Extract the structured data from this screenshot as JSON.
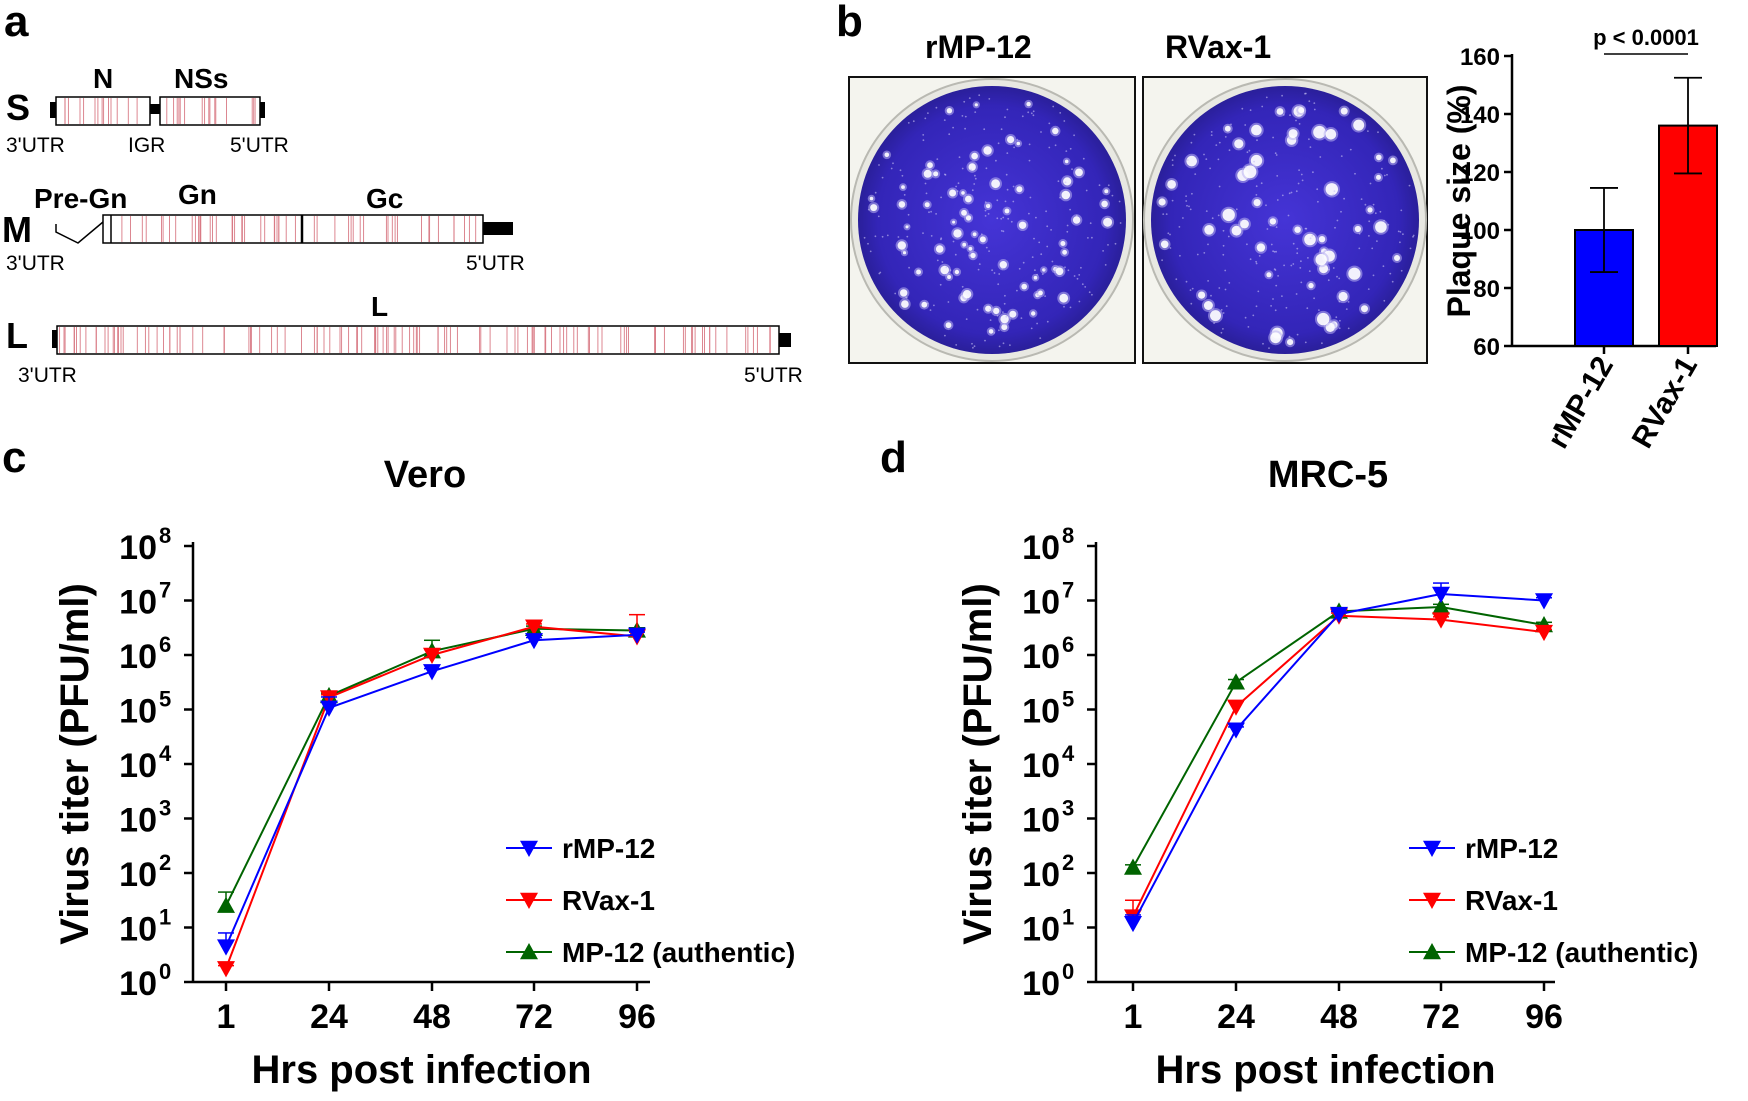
{
  "panel_labels": {
    "a": "a",
    "b": "b",
    "c": "c",
    "d": "d"
  },
  "genome": {
    "segments": [
      {
        "name": "S",
        "genes": [
          "N",
          "NSs"
        ],
        "utr_left": "3'UTR",
        "utr_right": "5'UTR",
        "middle_label": "IGR"
      },
      {
        "name": "M",
        "genes": [
          "Pre-Gn",
          "Gn",
          "Gc"
        ],
        "utr_left": "3'UTR",
        "utr_right": "5'UTR"
      },
      {
        "name": "L",
        "genes": [
          "L"
        ],
        "utr_left": "3'UTR",
        "utr_right": "5'UTR"
      }
    ]
  },
  "plaques": {
    "labels": [
      "rMP-12",
      "RVax-1"
    ]
  },
  "colors": {
    "rMP-12": "#0000ff",
    "RVax-1": "#ff0000",
    "MP-12": "#006400",
    "dish": "#3a2bc4",
    "mutation": "#d97a85"
  },
  "chart_data": [
    {
      "type": "bar",
      "categories": [
        "rMP-12",
        "RVax-1"
      ],
      "values": [
        100,
        136
      ],
      "errors": [
        14.5,
        16.5
      ],
      "ylabel": "Plaque size (%)",
      "ylim": [
        60,
        160
      ],
      "yticks": [
        60,
        80,
        100,
        120,
        140,
        160
      ],
      "annotation": "p < 0.0001"
    },
    {
      "type": "line",
      "title": "Vero",
      "xlabel": "Hrs post infection",
      "ylabel": "Virus titer (PFU/ml)",
      "x": [
        1,
        24,
        48,
        72,
        96
      ],
      "ylim_log10": [
        0,
        8
      ],
      "yticks_exp": [
        0,
        1,
        2,
        3,
        4,
        5,
        6,
        7,
        8
      ],
      "series": [
        {
          "name": "rMP-12",
          "marker": "down",
          "log10_values": [
            0.65,
            5.03,
            5.7,
            6.27,
            6.37
          ],
          "log10_err": [
            0.25,
            0.2,
            0.05,
            0.05,
            0.05
          ]
        },
        {
          "name": "RVax-1",
          "marker": "down",
          "log10_values": [
            0.25,
            5.22,
            6.0,
            6.52,
            6.34
          ],
          "log10_err": [
            0.05,
            0.05,
            0.1,
            0.05,
            0.4
          ]
        },
        {
          "name": "MP-12 (authentic)",
          "marker": "up",
          "log10_values": [
            1.4,
            5.25,
            6.07,
            6.48,
            6.45
          ],
          "log10_err": [
            0.25,
            0.05,
            0.2,
            0.05,
            0.05
          ]
        }
      ],
      "legend": [
        "rMP-12",
        "RVax-1",
        "MP-12 (authentic)"
      ]
    },
    {
      "type": "line",
      "title": "MRC-5",
      "xlabel": "Hrs post infection",
      "ylabel": "Virus titer (PFU/ml)",
      "x": [
        1,
        24,
        48,
        72,
        96
      ],
      "ylim_log10": [
        0,
        8
      ],
      "yticks_exp": [
        0,
        1,
        2,
        3,
        4,
        5,
        6,
        7,
        8
      ],
      "series": [
        {
          "name": "rMP-12",
          "marker": "down",
          "log10_values": [
            1.08,
            4.63,
            6.75,
            7.12,
            7.0
          ],
          "log10_err": [
            0.15,
            0.05,
            0.05,
            0.2,
            0.05
          ]
        },
        {
          "name": "RVax-1",
          "marker": "down",
          "log10_values": [
            1.2,
            5.05,
            6.72,
            6.65,
            6.42
          ],
          "log10_err": [
            0.3,
            0.1,
            0.05,
            0.05,
            0.05
          ]
        },
        {
          "name": "MP-12 (authentic)",
          "marker": "up",
          "log10_values": [
            2.1,
            5.5,
            6.8,
            6.88,
            6.55
          ],
          "log10_err": [
            0.05,
            0.05,
            0.05,
            0.05,
            0.05
          ]
        }
      ],
      "legend": [
        "rMP-12",
        "RVax-1",
        "MP-12 (authentic)"
      ]
    }
  ]
}
